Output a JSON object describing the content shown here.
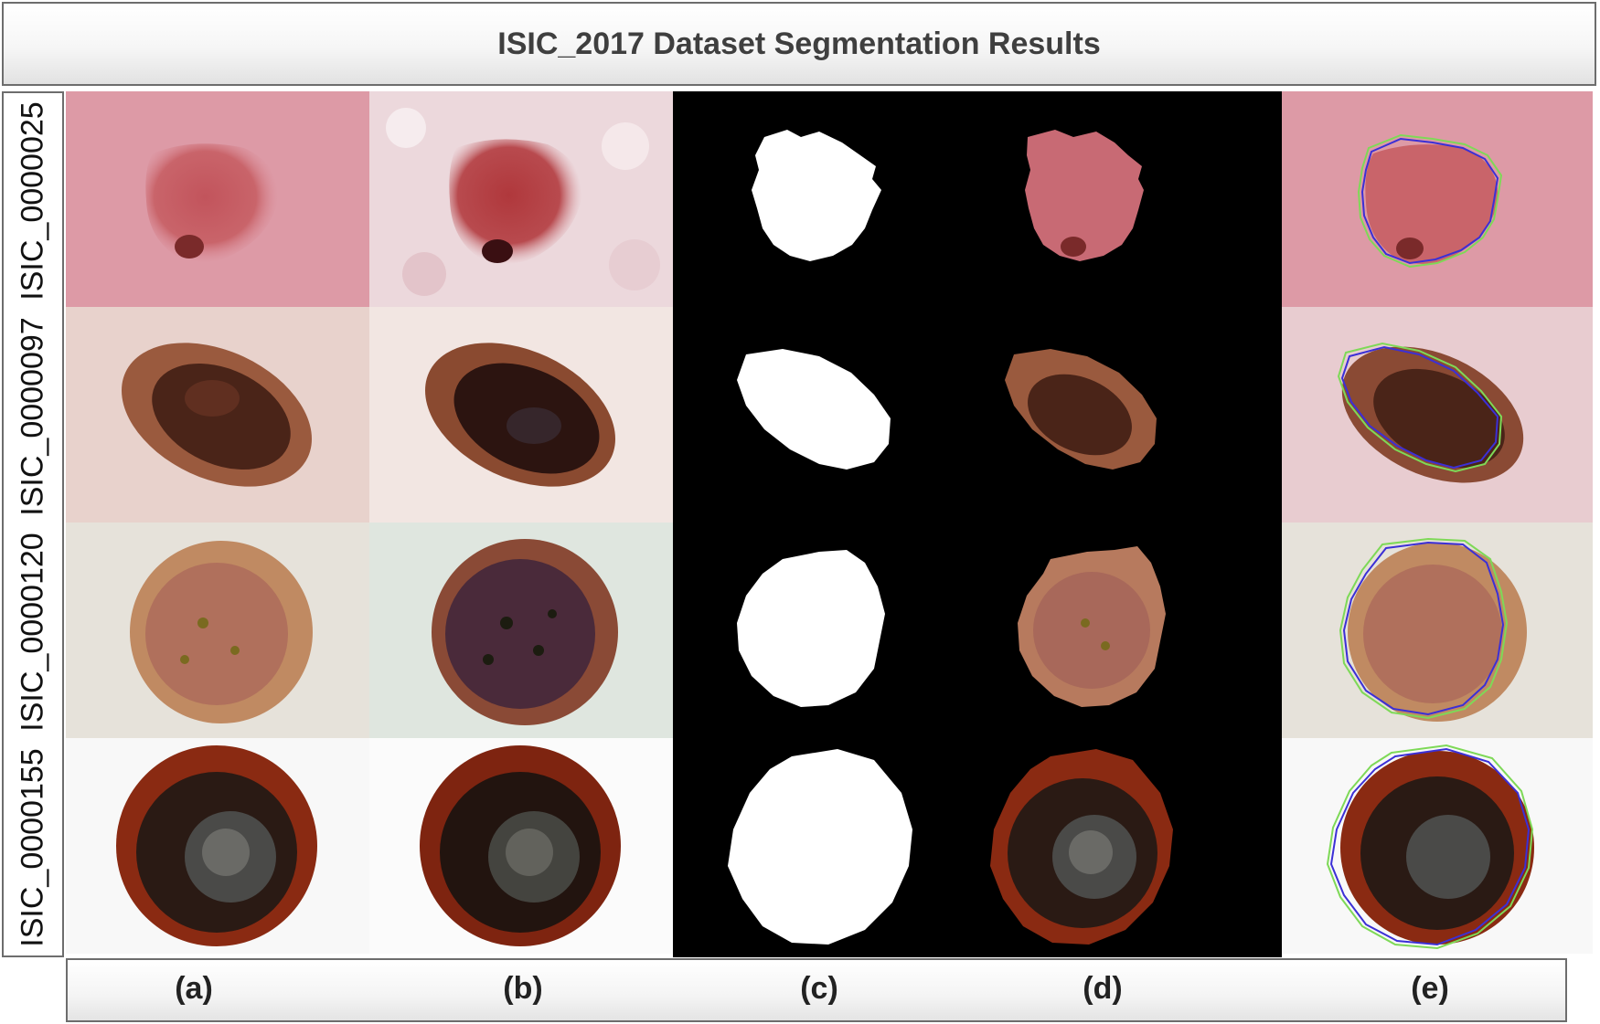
{
  "title": "ISIC_2017 Dataset Segmentation Results",
  "rows": [
    {
      "label": "ISIC_0000025"
    },
    {
      "label": "ISIC_0000097"
    },
    {
      "label": "ISIC_0000120"
    },
    {
      "label": "ISIC_0000155"
    }
  ],
  "columns": [
    {
      "label": "(a)"
    },
    {
      "label": "(b)"
    },
    {
      "label": "(c)"
    },
    {
      "label": "(d)"
    },
    {
      "label": "(e)"
    }
  ],
  "colors": {
    "mask_background": "#000000",
    "mask_foreground": "#ffffff",
    "ground_truth_contour": "#7ed957",
    "predicted_contour": "#3b2fd6"
  }
}
